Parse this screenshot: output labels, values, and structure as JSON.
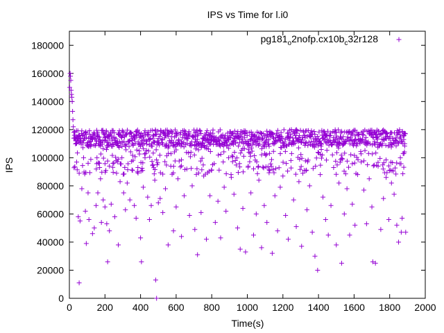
{
  "chart_data": {
    "type": "scatter",
    "title": "IPS vs Time for l.i0",
    "xlabel": "Time(s)",
    "ylabel": "IPS",
    "xlim": [
      0,
      2000
    ],
    "ylim": [
      0,
      190000
    ],
    "x_ticks": [
      0,
      200,
      400,
      600,
      800,
      1000,
      1200,
      1400,
      1600,
      1800,
      2000
    ],
    "y_ticks": [
      0,
      20000,
      40000,
      60000,
      80000,
      100000,
      120000,
      140000,
      160000,
      180000
    ],
    "x_tick_labels": [
      "0",
      "200",
      "400",
      "600",
      "800",
      "1000",
      "1200",
      "1400",
      "1600",
      "1800",
      "2000"
    ],
    "y_tick_labels": [
      "0",
      "20000",
      "40000",
      "60000",
      "80000",
      "100000",
      "120000",
      "140000",
      "160000",
      "180000"
    ],
    "grid": false,
    "legend_position": "top-right",
    "series": [
      {
        "name": "pg181_o2nofp.cx10b_c32r128",
        "name_parts": {
          "a": "pg181",
          "b": "o",
          "c": "2nofp.cx10b",
          "d": "c",
          "e": "32r128"
        },
        "color": "#9400d3",
        "marker": "plus",
        "points": [
          [
            2,
            150000
          ],
          [
            4,
            160000
          ],
          [
            6,
            158000
          ],
          [
            8,
            155000
          ],
          [
            10,
            148000
          ],
          [
            12,
            145000
          ],
          [
            14,
            143000
          ],
          [
            16,
            140000
          ],
          [
            18,
            133000
          ],
          [
            20,
            127000
          ],
          [
            22,
            122000
          ],
          [
            25,
            118000
          ],
          [
            28,
            116000
          ],
          [
            32,
            114000
          ],
          [
            36,
            112000
          ],
          [
            40,
            115000
          ],
          [
            45,
            113000
          ],
          [
            50,
            58000
          ],
          [
            55,
            11000
          ],
          [
            60,
            55000
          ],
          [
            70,
            78000
          ],
          [
            80,
            100000
          ],
          [
            90,
            62000
          ],
          [
            95,
            39000
          ],
          [
            105,
            75000
          ],
          [
            110,
            56000
          ],
          [
            120,
            108000
          ],
          [
            130,
            46000
          ],
          [
            140,
            50000
          ],
          [
            150,
            66000
          ],
          [
            155,
            100000
          ],
          [
            160,
            75000
          ],
          [
            170,
            93000
          ],
          [
            175,
            85000
          ],
          [
            180,
            54000
          ],
          [
            190,
            70000
          ],
          [
            200,
            65000
          ],
          [
            205,
            91000
          ],
          [
            210,
            53000
          ],
          [
            215,
            26000
          ],
          [
            225,
            48000
          ],
          [
            235,
            67000
          ],
          [
            245,
            96000
          ],
          [
            255,
            58000
          ],
          [
            265,
            89000
          ],
          [
            275,
            38000
          ],
          [
            285,
            83000
          ],
          [
            295,
            100000
          ],
          [
            305,
            75000
          ],
          [
            315,
            63000
          ],
          [
            325,
            82000
          ],
          [
            340,
            70000
          ],
          [
            355,
            91000
          ],
          [
            365,
            66000
          ],
          [
            375,
            57000
          ],
          [
            385,
            93000
          ],
          [
            400,
            43000
          ],
          [
            405,
            26000
          ],
          [
            415,
            79000
          ],
          [
            425,
            100000
          ],
          [
            440,
            72000
          ],
          [
            450,
            56000
          ],
          [
            460,
            66000
          ],
          [
            470,
            95000
          ],
          [
            480,
            84000
          ],
          [
            485,
            13000
          ],
          [
            490,
            0
          ],
          [
            500,
            68000
          ],
          [
            510,
            71000
          ],
          [
            525,
            61000
          ],
          [
            540,
            78000
          ],
          [
            555,
            38000
          ],
          [
            570,
            94000
          ],
          [
            585,
            48000
          ],
          [
            600,
            65000
          ],
          [
            610,
            85000
          ],
          [
            630,
            44000
          ],
          [
            645,
            73000
          ],
          [
            660,
            92000
          ],
          [
            675,
            59000
          ],
          [
            690,
            80000
          ],
          [
            705,
            49000
          ],
          [
            720,
            31000
          ],
          [
            740,
            61000
          ],
          [
            755,
            87000
          ],
          [
            770,
            42000
          ],
          [
            790,
            73000
          ],
          [
            805,
            95000
          ],
          [
            820,
            54000
          ],
          [
            835,
            69000
          ],
          [
            850,
            43000
          ],
          [
            870,
            79000
          ],
          [
            880,
            62000
          ],
          [
            895,
            100000
          ],
          [
            910,
            86000
          ],
          [
            925,
            74000
          ],
          [
            945,
            50000
          ],
          [
            960,
            35000
          ],
          [
            975,
            64000
          ],
          [
            990,
            33000
          ],
          [
            1005,
            94000
          ],
          [
            1020,
            75000
          ],
          [
            1035,
            45000
          ],
          [
            1050,
            60000
          ],
          [
            1065,
            84000
          ],
          [
            1080,
            36000
          ],
          [
            1095,
            66000
          ],
          [
            1110,
            54000
          ],
          [
            1125,
            103000
          ],
          [
            1140,
            32000
          ],
          [
            1155,
            73000
          ],
          [
            1170,
            48000
          ],
          [
            1185,
            79000
          ],
          [
            1200,
            87000
          ],
          [
            1215,
            59000
          ],
          [
            1230,
            42000
          ],
          [
            1245,
            98000
          ],
          [
            1260,
            70000
          ],
          [
            1275,
            51000
          ],
          [
            1290,
            83000
          ],
          [
            1305,
            37000
          ],
          [
            1320,
            91000
          ],
          [
            1335,
            63000
          ],
          [
            1350,
            80000
          ],
          [
            1365,
            47000
          ],
          [
            1380,
            30000
          ],
          [
            1395,
            20000
          ],
          [
            1410,
            88000
          ],
          [
            1425,
            72000
          ],
          [
            1440,
            56000
          ],
          [
            1455,
            45000
          ],
          [
            1470,
            66000
          ],
          [
            1485,
            93000
          ],
          [
            1500,
            38000
          ],
          [
            1515,
            82000
          ],
          [
            1530,
            25000
          ],
          [
            1545,
            60000
          ],
          [
            1560,
            78000
          ],
          [
            1575,
            45000
          ],
          [
            1590,
            67000
          ],
          [
            1605,
            52000
          ],
          [
            1620,
            88000
          ],
          [
            1640,
            97000
          ],
          [
            1655,
            77000
          ],
          [
            1670,
            53000
          ],
          [
            1685,
            85000
          ],
          [
            1700,
            65000
          ],
          [
            1705,
            26000
          ],
          [
            1720,
            25000
          ],
          [
            1735,
            94000
          ],
          [
            1750,
            49000
          ],
          [
            1765,
            71000
          ],
          [
            1780,
            86000
          ],
          [
            1795,
            56000
          ],
          [
            1810,
            82000
          ],
          [
            1825,
            74000
          ],
          [
            1840,
            52000
          ],
          [
            1850,
            40000
          ],
          [
            1860,
            100000
          ],
          [
            1865,
            47000
          ],
          [
            1870,
            57000
          ],
          [
            1880,
            103000
          ],
          [
            1885,
            110000
          ],
          [
            1890,
            47000
          ]
        ],
        "dense_band": {
          "x_range": [
            25,
            1890
          ],
          "y_range": [
            108000,
            120000
          ],
          "secondary_y_range": [
            88000,
            108000
          ]
        }
      }
    ]
  }
}
